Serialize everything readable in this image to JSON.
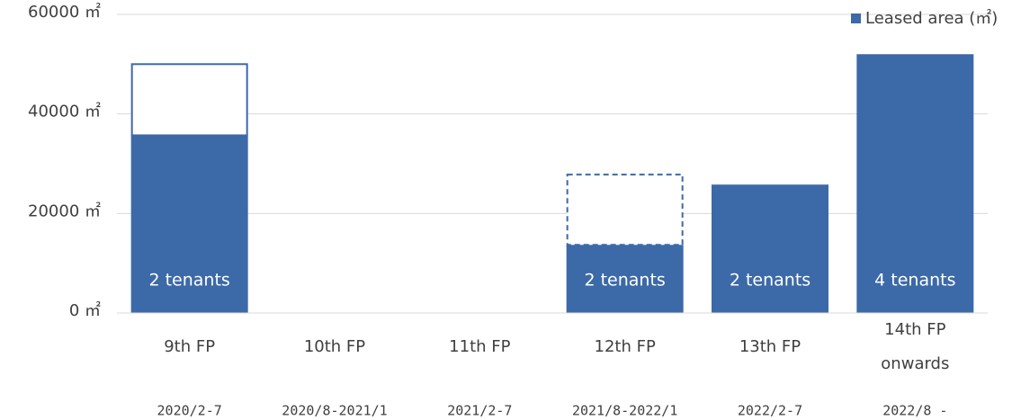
{
  "chart_data": {
    "type": "bar",
    "stacked": true,
    "categories": [
      "9th FP",
      "10th FP",
      "11th FP",
      "12th FP",
      "13th FP",
      "14th FP\nonwards"
    ],
    "periods": [
      "2020/2-7",
      "2020/8-2021/1",
      "2021/2-7",
      "2021/8-2022/1",
      "2022/2-7",
      "2022/8 -"
    ],
    "series": [
      {
        "name": "Leased area (㎡)",
        "color": "#3c69a8",
        "values": [
          35700,
          null,
          null,
          13700,
          25800,
          52000
        ],
        "bar_labels": [
          "2 tenants",
          null,
          null,
          "2 tenants",
          "2 tenants",
          "4 tenants"
        ]
      },
      {
        "color": "#3c69a8",
        "outline": true,
        "values": [
          14300,
          null,
          null,
          14100,
          null,
          null
        ],
        "dashed": [
          false,
          null,
          null,
          true,
          null,
          null
        ]
      }
    ],
    "ylim": [
      0,
      60000
    ],
    "yticks": [
      {
        "value": 0,
        "label": "0 ㎡"
      },
      {
        "value": 20000,
        "label": "20000 ㎡"
      },
      {
        "value": 40000,
        "label": "40000 ㎡"
      },
      {
        "value": 60000,
        "label": "60000 ㎡"
      }
    ],
    "grid": true,
    "legend": "top-right"
  }
}
